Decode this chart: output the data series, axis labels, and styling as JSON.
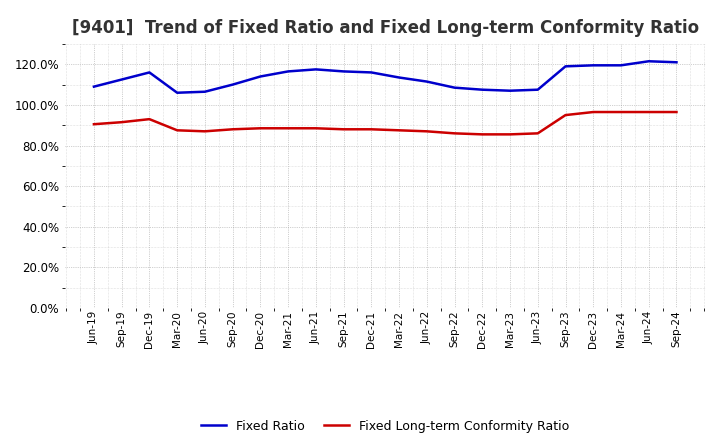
{
  "title": "[9401]  Trend of Fixed Ratio and Fixed Long-term Conformity Ratio",
  "title_fontsize": 12,
  "x_labels": [
    "Jun-19",
    "Sep-19",
    "Dec-19",
    "Mar-20",
    "Jun-20",
    "Sep-20",
    "Dec-20",
    "Mar-21",
    "Jun-21",
    "Sep-21",
    "Dec-21",
    "Mar-22",
    "Jun-22",
    "Sep-22",
    "Dec-22",
    "Mar-23",
    "Jun-23",
    "Sep-23",
    "Dec-23",
    "Mar-24",
    "Jun-24",
    "Sep-24"
  ],
  "fixed_ratio": [
    109.0,
    112.5,
    116.0,
    106.0,
    106.5,
    110.0,
    114.0,
    116.5,
    117.5,
    116.5,
    116.0,
    113.5,
    111.5,
    108.5,
    107.5,
    107.0,
    107.5,
    119.0,
    119.5,
    119.5,
    121.5,
    121.0
  ],
  "fixed_lt_ratio": [
    90.5,
    91.5,
    93.0,
    87.5,
    87.0,
    88.0,
    88.5,
    88.5,
    88.5,
    88.0,
    88.0,
    87.5,
    87.0,
    86.0,
    85.5,
    85.5,
    86.0,
    95.0,
    96.5,
    96.5,
    96.5,
    96.5
  ],
  "fixed_ratio_color": "#0000cc",
  "fixed_lt_ratio_color": "#cc0000",
  "background_color": "#ffffff",
  "grid_color": "#999999",
  "ylim": [
    0,
    130
  ],
  "yticks": [
    0,
    20,
    40,
    60,
    80,
    100,
    120
  ],
  "legend_labels": [
    "Fixed Ratio",
    "Fixed Long-term Conformity Ratio"
  ]
}
